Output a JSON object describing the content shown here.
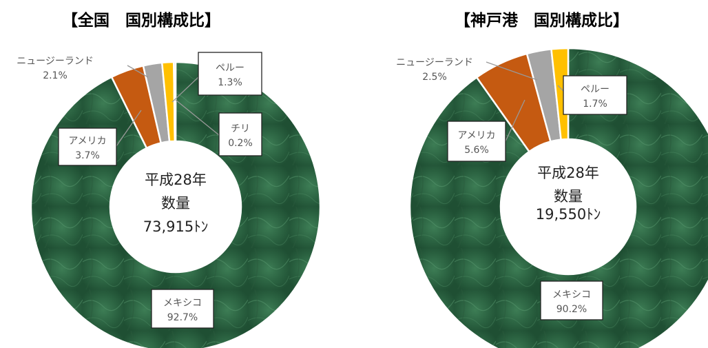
{
  "chart_data": [
    {
      "type": "pie",
      "title": "【全国　国別構成比】",
      "center_text": [
        "平成28年",
        "数量",
        "73,915ﾄﾝ"
      ],
      "slices": [
        {
          "name": "メキシコ",
          "value_label": "92.7%",
          "value": 92.7,
          "color": "#2e6a45"
        },
        {
          "name": "アメリカ",
          "value_label": "3.7%",
          "value": 3.7,
          "color": "#c55a11"
        },
        {
          "name": "ニュージーランド",
          "value_label": "2.1%",
          "value": 2.1,
          "color": "#a5a5a5"
        },
        {
          "name": "ペルー",
          "value_label": "1.3%",
          "value": 1.3,
          "color": "#ffc000"
        },
        {
          "name": "チリ",
          "value_label": "0.2%",
          "value": 0.2,
          "color": "#4472c4"
        }
      ]
    },
    {
      "type": "pie",
      "title": "【神戸港　国別構成比】",
      "center_text": [
        "平成28年",
        "数量",
        "19,550ﾄﾝ"
      ],
      "slices": [
        {
          "name": "メキシコ",
          "value_label": "90.2%",
          "value": 90.2,
          "color": "#2e6a45"
        },
        {
          "name": "アメリカ",
          "value_label": "5.6%",
          "value": 5.6,
          "color": "#c55a11"
        },
        {
          "name": "ニュージーランド",
          "value_label": "2.5%",
          "value": 2.5,
          "color": "#a5a5a5"
        },
        {
          "name": "ペルー",
          "value_label": "1.7%",
          "value": 1.7,
          "color": "#ffc000"
        }
      ]
    }
  ]
}
